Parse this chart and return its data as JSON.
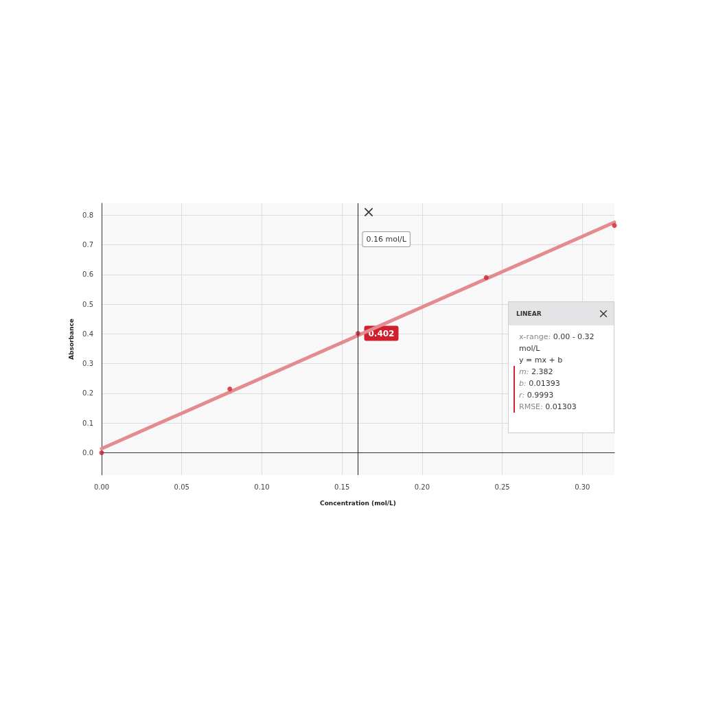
{
  "chart_data": {
    "type": "scatter",
    "xlabel": "Concentration (mol/L)",
    "ylabel": "Absorbance",
    "xlim": [
      0,
      0.32
    ],
    "ylim": [
      -0.075,
      0.84
    ],
    "xticks": [
      {
        "value": 0,
        "label": "0.00"
      },
      {
        "value": 0.05,
        "label": "0.05"
      },
      {
        "value": 0.1,
        "label": "0.10"
      },
      {
        "value": 0.15,
        "label": "0.15"
      },
      {
        "value": 0.2,
        "label": "0.20"
      },
      {
        "value": 0.25,
        "label": "0.25"
      },
      {
        "value": 0.3,
        "label": "0.30"
      }
    ],
    "yticks": [
      {
        "value": 0,
        "label": "0.0"
      },
      0.1,
      0.2,
      0.3,
      0.4,
      0.5,
      0.6,
      0.7,
      0.8
    ],
    "grid": true,
    "marker": "circle",
    "series": [
      {
        "type": "line",
        "color": "#e38b8f",
        "x": [
          0,
          0.32
        ],
        "values": [
          0.014,
          0.776
        ],
        "marker": "none",
        "line_style": "solid"
      },
      {
        "color": "#d0202e",
        "x": [
          0,
          0.08,
          0.16,
          0.24,
          0.32
        ],
        "values": [
          0,
          0.215,
          0.402,
          0.59,
          0.765
        ]
      }
    ],
    "ref_lines": [
      {
        "axis": "x",
        "value": 0.16,
        "label": "0.16 mol/L",
        "color": "#222222"
      }
    ],
    "annotations": [
      {
        "text": "0.402",
        "x": 0.16,
        "y": 0.402
      },
      "LINEAR",
      "x-range: 0.00 - 0.32 mol/L",
      "y = mx + b",
      "m: 2.382",
      "b: 0.01393",
      "r: 0.9993",
      "RMSE: 0.01303"
    ]
  }
}
